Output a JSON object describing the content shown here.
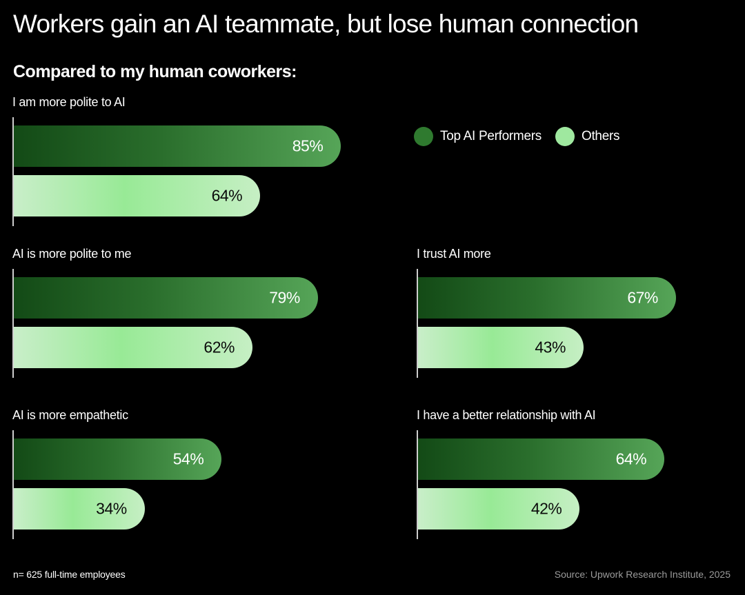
{
  "colors": {
    "background": "#000000",
    "top_performers": "#2f7a2f",
    "others": "#9fe89f"
  },
  "chart_data": {
    "type": "bar",
    "orientation": "horizontal",
    "title": "Workers gain an AI teammate, but lose human connection",
    "subtitle": "Compared to my human coworkers:",
    "legend": [
      "Top AI Performers",
      "Others"
    ],
    "legend_position": "top-right",
    "ylim": [
      0,
      100
    ],
    "unit": "%",
    "panels": [
      {
        "label": "I am more polite to AI",
        "top_value": 85,
        "top_label": "85%",
        "other_value": 64,
        "other_label": "64%"
      },
      {
        "label": "AI is more polite to me",
        "top_value": 79,
        "top_label": "79%",
        "other_value": 62,
        "other_label": "62%"
      },
      {
        "label": "I trust AI more",
        "top_value": 67,
        "top_label": "67%",
        "other_value": 43,
        "other_label": "43%"
      },
      {
        "label": "AI is more empathetic",
        "top_value": 54,
        "top_label": "54%",
        "other_value": 34,
        "other_label": "34%"
      },
      {
        "label": "I have a better relationship with AI",
        "top_value": 64,
        "top_label": "64%",
        "other_value": 42,
        "other_label": "42%"
      }
    ],
    "footnote": "n= 625 full-time employees",
    "source": "Source: Upwork Research Institute, 2025"
  }
}
